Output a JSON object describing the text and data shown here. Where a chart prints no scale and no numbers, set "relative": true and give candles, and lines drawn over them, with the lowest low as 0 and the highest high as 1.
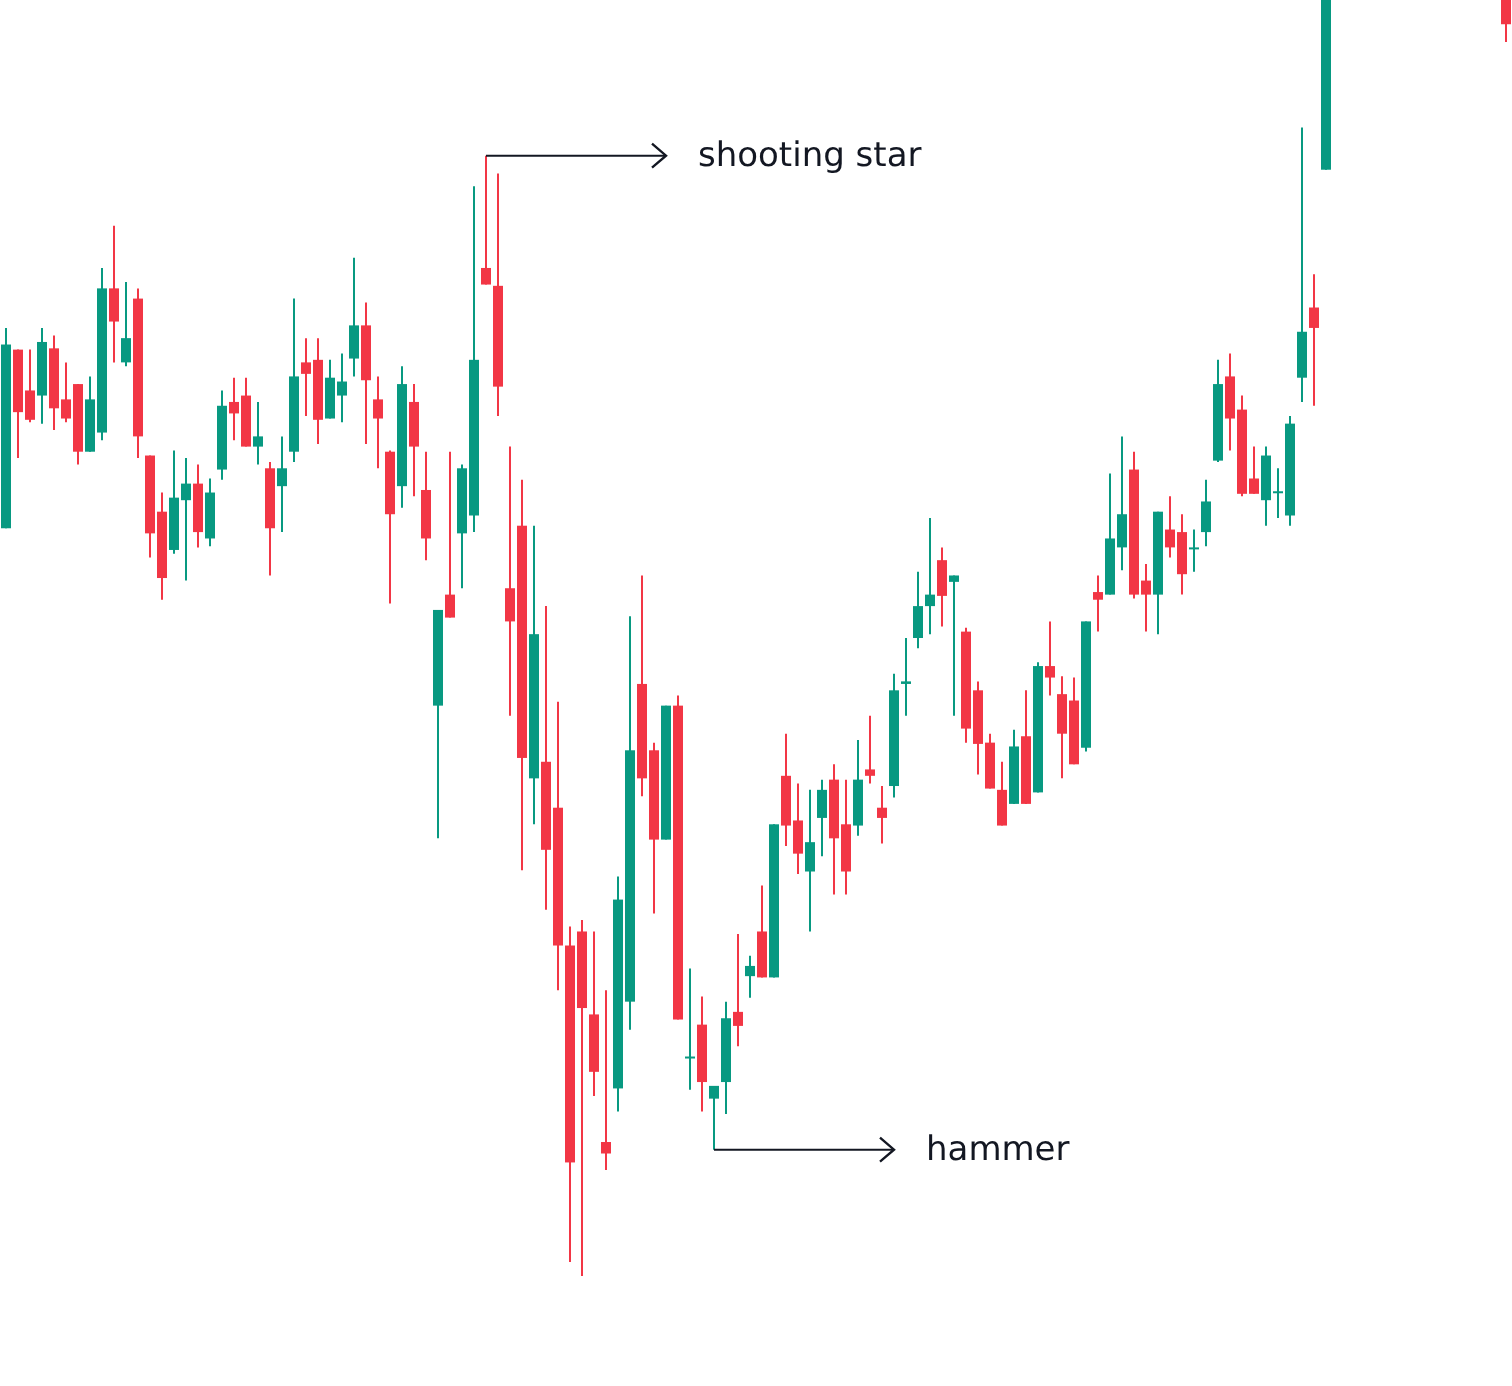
{
  "chart_data": {
    "type": "candlestick",
    "relative": true,
    "colors": [
      "#089981",
      "#f23645",
      "#f23645",
      "#089981",
      "#f23645",
      "#f23645",
      "#f23645",
      "#089981",
      "#089981",
      "#f23645",
      "#089981",
      "#f23645",
      "#f23645",
      "#f23645",
      "#089981",
      "#089981",
      "#f23645",
      "#089981",
      "#089981",
      "#f23645",
      "#f23645",
      "#089981",
      "#f23645",
      "#089981",
      "#089981",
      "#f23645",
      "#f23645",
      "#089981",
      "#089981",
      "#089981",
      "#f23645",
      "#f23645",
      "#f23645",
      "#089981",
      "#f23645",
      "#f23645",
      "#089981",
      "#f23645",
      "#089981",
      "#089981",
      "#f23645",
      "#f23645",
      "#f23645",
      "#f23645",
      "#089981",
      "#f23645",
      "#f23645",
      "#f23645",
      "#f23645",
      "#f23645",
      "#f23645",
      "#089981",
      "#089981",
      "#f23645",
      "#f23645",
      "#089981",
      "#f23645",
      "#089981",
      "#f23645",
      "#089981",
      "#089981",
      "#f23645",
      "#089981",
      "#f23645",
      "#089981",
      "#f23645",
      "#f23645",
      "#089981",
      "#089981",
      "#f23645",
      "#f23645",
      "#089981",
      "#f23645",
      "#f23645",
      "#089981",
      "#089981",
      "#089981",
      "#089981",
      "#f23645",
      "#089981",
      "#f23645",
      "#f23645",
      "#f23645",
      "#f23645",
      "#089981",
      "#f23645",
      "#089981",
      "#f23645",
      "#f23645",
      "#f23645",
      "#089981",
      "#f23645",
      "#089981",
      "#089981",
      "#f23645",
      "#f23645",
      "#089981",
      "#f23645",
      "#f23645",
      "#089981",
      "#089981",
      "#089981",
      "#f23645",
      "#f23645",
      "#f23645",
      "#089981",
      "#089981",
      "#089981",
      "#089981",
      "#f23645",
      "#089981",
      null,
      null,
      null,
      null,
      null,
      null,
      null,
      null,
      null,
      null,
      null,
      null,
      null,
      null,
      "#f23645"
    ],
    "annotations": [
      "shooting star",
      "hammer"
    ],
    "ohlc": [
      [
        0.586,
        0.743,
        0.586,
        0.73
      ],
      [
        0.726,
        0.726,
        0.641,
        0.677
      ],
      [
        0.694,
        0.726,
        0.669,
        0.671
      ],
      [
        0.69,
        0.743,
        0.668,
        0.732
      ],
      [
        0.727,
        0.737,
        0.663,
        0.68
      ],
      [
        0.687,
        0.716,
        0.669,
        0.672
      ],
      [
        0.699,
        0.699,
        0.636,
        0.646
      ],
      [
        0.646,
        0.705,
        0.646,
        0.687
      ],
      [
        0.661,
        0.79,
        0.655,
        0.774
      ],
      [
        0.774,
        0.823,
        0.716,
        0.748
      ],
      [
        0.716,
        0.779,
        0.713,
        0.735
      ],
      [
        0.766,
        0.774,
        0.641,
        0.658
      ],
      [
        0.643,
        0.643,
        0.563,
        0.582
      ],
      [
        0.599,
        0.614,
        0.53,
        0.547
      ],
      [
        0.569,
        0.647,
        0.566,
        0.61
      ],
      [
        0.608,
        0.641,
        0.545,
        0.621
      ],
      [
        0.621,
        0.636,
        0.571,
        0.583
      ],
      [
        0.578,
        0.625,
        0.572,
        0.614
      ],
      [
        0.632,
        0.694,
        0.624,
        0.682
      ],
      [
        0.685,
        0.704,
        0.655,
        0.676
      ],
      [
        0.69,
        0.704,
        0.65,
        0.65
      ],
      [
        0.65,
        0.685,
        0.636,
        0.658
      ],
      [
        0.633,
        0.638,
        0.549,
        0.586
      ],
      [
        0.619,
        0.658,
        0.583,
        0.633
      ],
      [
        0.646,
        0.766,
        0.638,
        0.705
      ],
      [
        0.716,
        0.735,
        0.674,
        0.707
      ],
      [
        0.718,
        0.735,
        0.652,
        0.671
      ],
      [
        0.672,
        0.718,
        0.672,
        0.704
      ],
      [
        0.69,
        0.723,
        0.669,
        0.701
      ],
      [
        0.719,
        0.798,
        0.705,
        0.745
      ],
      [
        0.745,
        0.763,
        0.652,
        0.702
      ],
      [
        0.687,
        0.705,
        0.633,
        0.672
      ],
      [
        0.646,
        0.647,
        0.527,
        0.597
      ],
      [
        0.619,
        0.713,
        0.602,
        0.699
      ],
      [
        0.685,
        0.699,
        0.611,
        0.65
      ],
      [
        0.616,
        0.646,
        0.561,
        0.578
      ],
      [
        0.447,
        0.522,
        0.343,
        0.522
      ],
      [
        0.534,
        0.646,
        0.516,
        0.516
      ],
      [
        0.582,
        0.636,
        0.539,
        0.633
      ],
      [
        0.596,
        0.854,
        0.583,
        0.718
      ],
      [
        0.79,
        0.878,
        0.777,
        0.777
      ],
      [
        0.776,
        0.864,
        0.674,
        0.697
      ],
      [
        0.539,
        0.65,
        0.439,
        0.513
      ],
      [
        0.588,
        0.624,
        0.318,
        0.406
      ],
      [
        0.39,
        0.588,
        0.354,
        0.503
      ],
      [
        0.403,
        0.525,
        0.287,
        0.334
      ],
      [
        0.367,
        0.45,
        0.224,
        0.259
      ],
      [
        0.259,
        0.274,
        0.011,
        0.089
      ],
      [
        0.27,
        0.279,
        0,
        0.21
      ],
      [
        0.205,
        0.27,
        0.141,
        0.16
      ],
      [
        0.105,
        0.224,
        0.083,
        0.096
      ],
      [
        0.147,
        0.313,
        0.129,
        0.295
      ],
      [
        0.215,
        0.517,
        0.193,
        0.412
      ],
      [
        0.464,
        0.549,
        0.376,
        0.39
      ],
      [
        0.412,
        0.418,
        0.284,
        0.342
      ],
      [
        0.342,
        0.447,
        0.342,
        0.447
      ],
      [
        0.447,
        0.455,
        0.201,
        0.201
      ],
      [
        0.171,
        0.241,
        0.146,
        0.172
      ],
      [
        0.197,
        0.219,
        0.129,
        0.152
      ],
      [
        0.139,
        0.149,
        0.099,
        0.149
      ],
      [
        0.152,
        0.215,
        0.127,
        0.202
      ],
      [
        0.207,
        0.268,
        0.18,
        0.196
      ],
      [
        0.235,
        0.251,
        0.218,
        0.243
      ],
      [
        0.27,
        0.306,
        0.234,
        0.234
      ],
      [
        0.234,
        0.354,
        0.234,
        0.354
      ],
      [
        0.392,
        0.425,
        0.337,
        0.353
      ],
      [
        0.357,
        0.386,
        0.315,
        0.331
      ],
      [
        0.317,
        0.381,
        0.27,
        0.34
      ],
      [
        0.359,
        0.389,
        0.329,
        0.381
      ],
      [
        0.389,
        0.401,
        0.299,
        0.343
      ],
      [
        0.354,
        0.389,
        0.299,
        0.317
      ],
      [
        0.353,
        0.42,
        0.345,
        0.389
      ],
      [
        0.397,
        0.439,
        0.386,
        0.392
      ],
      [
        0.367,
        0.384,
        0.339,
        0.359
      ],
      [
        0.384,
        0.472,
        0.375,
        0.459
      ],
      [
        0.464,
        0.5,
        0.439,
        0.466
      ],
      [
        0.5,
        0.552,
        0.492,
        0.525
      ],
      [
        0.525,
        0.594,
        0.503,
        0.534
      ],
      [
        0.561,
        0.571,
        0.509,
        0.533
      ],
      [
        0.544,
        0.549,
        0.439,
        0.549
      ],
      [
        0.505,
        0.508,
        0.418,
        0.429
      ],
      [
        0.459,
        0.466,
        0.393,
        0.417
      ],
      [
        0.418,
        0.425,
        0.382,
        0.382
      ],
      [
        0.381,
        0.403,
        0.353,
        0.353
      ],
      [
        0.37,
        0.428,
        0.37,
        0.415
      ],
      [
        0.423,
        0.459,
        0.37,
        0.37
      ],
      [
        0.379,
        0.481,
        0.379,
        0.478
      ],
      [
        0.478,
        0.513,
        0.455,
        0.469
      ],
      [
        0.456,
        0.47,
        0.39,
        0.425
      ],
      [
        0.451,
        0.469,
        0.401,
        0.401
      ],
      [
        0.414,
        0.513,
        0.411,
        0.513
      ],
      [
        0.536,
        0.549,
        0.505,
        0.53
      ],
      [
        0.534,
        0.629,
        0.534,
        0.578
      ],
      [
        0.571,
        0.658,
        0.553,
        0.597
      ],
      [
        0.632,
        0.646,
        0.531,
        0.534
      ],
      [
        0.545,
        0.558,
        0.505,
        0.534
      ],
      [
        0.534,
        0.599,
        0.503,
        0.599
      ],
      [
        0.585,
        0.611,
        0.563,
        0.571
      ],
      [
        0.583,
        0.597,
        0.534,
        0.55
      ],
      [
        0.57,
        0.585,
        0.552,
        0.571
      ],
      [
        0.583,
        0.624,
        0.572,
        0.607
      ],
      [
        0.639,
        0.718,
        0.638,
        0.699
      ],
      [
        0.705,
        0.723,
        0.647,
        0.672
      ],
      [
        0.679,
        0.69,
        0.611,
        0.613
      ],
      [
        0.625,
        0.65,
        0.613,
        0.613
      ],
      [
        0.608,
        0.65,
        0.588,
        0.643
      ],
      [
        0.614,
        0.633,
        0.594,
        0.615
      ],
      [
        0.596,
        0.674,
        0.588,
        0.668
      ],
      [
        0.704,
        0.9,
        0.685,
        0.74
      ],
      [
        0.759,
        0.785,
        0.682,
        0.743
      ],
      [
        0.867,
        1,
        0.867,
        1
      ],
      null,
      null,
      null,
      null,
      null,
      null,
      null,
      null,
      null,
      null,
      null,
      null,
      null,
      null,
      [
        1,
        1,
        0.967,
        0.981
      ]
    ]
  }
}
